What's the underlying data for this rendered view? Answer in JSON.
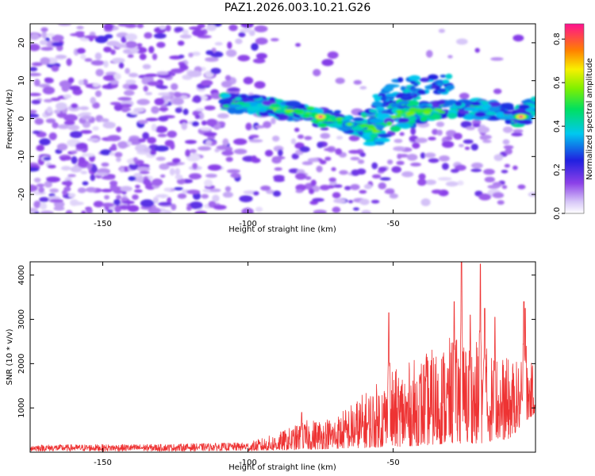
{
  "chart_data": [
    {
      "type": "heatmap",
      "title": "PAZ1.2026.003.10.21.G26",
      "xlabel": "Height of straight line (km)",
      "ylabel": "Frequency (Hz)",
      "xlim": [
        -175,
        -1
      ],
      "ylim": [
        -25,
        25
      ],
      "xticks": [
        -150,
        -100,
        -50
      ],
      "yticks": [
        -20,
        -10,
        0,
        10,
        20
      ],
      "colorbar": {
        "label": "Normalized spectral amplitude",
        "range": [
          0.0,
          0.87
        ],
        "ticks": [
          "0.0",
          "0.2",
          "0.4",
          "0.6",
          "0.8"
        ]
      },
      "ridge": [
        {
          "x": -105,
          "y": 4.0
        },
        {
          "x": -95,
          "y": 3.5
        },
        {
          "x": -88,
          "y": 2.5
        },
        {
          "x": -80,
          "y": 1.0
        },
        {
          "x": -75,
          "y": 0.5
        },
        {
          "x": -70,
          "y": 0.0
        },
        {
          "x": -65,
          "y": -1.5
        },
        {
          "x": -60,
          "y": -2.5
        },
        {
          "x": -55,
          "y": -3.0
        },
        {
          "x": -48,
          "y": 1.5
        },
        {
          "x": -40,
          "y": 2.0
        },
        {
          "x": -30,
          "y": 2.5
        },
        {
          "x": -20,
          "y": 2.5
        },
        {
          "x": -12,
          "y": 1.5
        },
        {
          "x": -6,
          "y": 0.5
        },
        {
          "x": -2,
          "y": 3.0
        }
      ],
      "peaks": [
        {
          "x": -75,
          "y": 0.5,
          "value": 0.87
        },
        {
          "x": -65,
          "y": -1.5,
          "value": 0.55
        },
        {
          "x": -6,
          "y": 0.5,
          "value": 0.87
        }
      ]
    },
    {
      "type": "line",
      "xlabel": "Height of straight line (km)",
      "ylabel": "SNR (10 * v/v)",
      "xlim": [
        -175,
        -1
      ],
      "ylim": [
        0,
        4300
      ],
      "xticks": [
        -150,
        -100,
        -50
      ],
      "yticks": [
        1000,
        2000,
        3000,
        4000
      ],
      "series": [
        {
          "name": "SNR",
          "color": "#ee3333",
          "envelope": [
            {
              "x": -175,
              "low": 20,
              "high": 170
            },
            {
              "x": -130,
              "low": 20,
              "high": 180
            },
            {
              "x": -100,
              "low": 30,
              "high": 220
            },
            {
              "x": -90,
              "low": 40,
              "high": 430
            },
            {
              "x": -80,
              "low": 60,
              "high": 720
            },
            {
              "x": -70,
              "low": 80,
              "high": 820
            },
            {
              "x": -60,
              "low": 100,
              "high": 1350
            },
            {
              "x": -50,
              "low": 120,
              "high": 1850
            },
            {
              "x": -40,
              "low": 150,
              "high": 2200
            },
            {
              "x": -30,
              "low": 200,
              "high": 2600
            },
            {
              "x": -20,
              "low": 200,
              "high": 2500
            },
            {
              "x": -10,
              "low": 300,
              "high": 2100
            },
            {
              "x": -1,
              "low": 900,
              "high": 2000
            }
          ],
          "spikes": [
            {
              "x": -81.5,
              "y": 900
            },
            {
              "x": -51.5,
              "y": 3150
            },
            {
              "x": -29,
              "y": 3400
            },
            {
              "x": -26.5,
              "y": 4300
            },
            {
              "x": -23.5,
              "y": 3100
            },
            {
              "x": -20,
              "y": 4250
            },
            {
              "x": -18.5,
              "y": 3250
            },
            {
              "x": -15,
              "y": 3050
            },
            {
              "x": -5,
              "y": 3400
            },
            {
              "x": -4.5,
              "y": 3250
            }
          ]
        }
      ]
    }
  ]
}
